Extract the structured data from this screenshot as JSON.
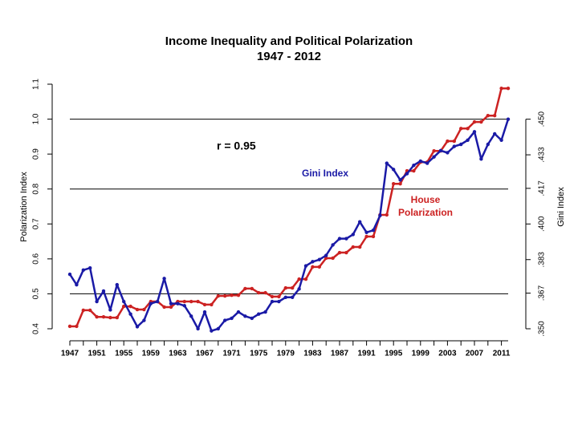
{
  "chart_data": {
    "type": "line",
    "title": [
      "Income Inequality and Political Polarization",
      "1947 - 2012"
    ],
    "y_label": "Polarization Index",
    "y2_label": "Gini Index",
    "x": [
      1947,
      1948,
      1949,
      1950,
      1951,
      1952,
      1953,
      1954,
      1955,
      1956,
      1957,
      1958,
      1959,
      1960,
      1961,
      1962,
      1963,
      1964,
      1965,
      1966,
      1967,
      1968,
      1969,
      1970,
      1971,
      1972,
      1973,
      1974,
      1975,
      1976,
      1977,
      1978,
      1979,
      1980,
      1981,
      1982,
      1983,
      1984,
      1985,
      1986,
      1987,
      1988,
      1989,
      1990,
      1991,
      1992,
      1993,
      1994,
      1995,
      1996,
      1997,
      1998,
      1999,
      2000,
      2001,
      2002,
      2003,
      2004,
      2005,
      2006,
      2007,
      2008,
      2009,
      2010,
      2011,
      2012
    ],
    "series": [
      {
        "name": "House Polarization",
        "color": "#cc2222",
        "axis": "y",
        "values": [
          0.407,
          0.407,
          0.453,
          0.453,
          0.434,
          0.434,
          0.432,
          0.432,
          0.464,
          0.464,
          0.455,
          0.455,
          0.478,
          0.478,
          0.462,
          0.462,
          0.478,
          0.478,
          0.478,
          0.478,
          0.469,
          0.469,
          0.494,
          0.494,
          0.496,
          0.496,
          0.515,
          0.515,
          0.503,
          0.503,
          0.492,
          0.492,
          0.517,
          0.517,
          0.542,
          0.542,
          0.577,
          0.577,
          0.602,
          0.602,
          0.618,
          0.618,
          0.634,
          0.634,
          0.664,
          0.664,
          0.726,
          0.726,
          0.815,
          0.815,
          0.852,
          0.852,
          0.877,
          0.877,
          0.909,
          0.909,
          0.937,
          0.937,
          0.973,
          0.973,
          0.992,
          0.992,
          1.01,
          1.01,
          1.088,
          1.088
        ]
      },
      {
        "name": "Gini Index",
        "color": "#1a1aa6",
        "axis": "y2",
        "values": [
          0.376,
          0.371,
          0.378,
          0.379,
          0.363,
          0.368,
          0.359,
          0.371,
          0.363,
          0.357,
          0.351,
          0.354,
          0.362,
          0.363,
          0.374,
          0.362,
          0.362,
          0.361,
          0.356,
          0.35,
          0.358,
          0.349,
          0.35,
          0.354,
          0.355,
          0.358,
          0.356,
          0.355,
          0.357,
          0.358,
          0.363,
          0.363,
          0.365,
          0.365,
          0.369,
          0.38,
          0.382,
          0.383,
          0.385,
          0.39,
          0.393,
          0.393,
          0.395,
          0.401,
          0.396,
          0.397,
          0.404,
          0.429,
          0.426,
          0.421,
          0.424,
          0.428,
          0.43,
          0.429,
          0.432,
          0.435,
          0.434,
          0.437,
          0.438,
          0.44,
          0.444,
          0.431,
          0.438,
          0.443,
          0.44,
          0.45
        ]
      }
    ],
    "xlim": [
      1947,
      2012
    ],
    "xticks": [
      1947,
      1951,
      1955,
      1959,
      1963,
      1967,
      1971,
      1975,
      1979,
      1983,
      1987,
      1991,
      1995,
      1999,
      2003,
      2007,
      2011
    ],
    "xminorticks": [
      1949,
      1953,
      1957,
      1961,
      1965,
      1969,
      1973,
      1977,
      1981,
      1985,
      1989,
      1993,
      1997,
      2001,
      2005,
      2009
    ],
    "ylim": [
      0.4,
      1.1
    ],
    "yticks": [
      0.4,
      0.5,
      0.6,
      0.7,
      0.8,
      0.9,
      {
        "value": 1,
        "label": "1.0"
      },
      1.1
    ],
    "y2lim": [
      0.35,
      0.4667
    ],
    "y2ticks": [
      {
        "value": 0.35,
        "label": ".350"
      },
      {
        "value": 0.367,
        "label": ".367"
      },
      {
        "value": 0.383,
        "label": ".383"
      },
      {
        "value": 0.4,
        "label": ".400"
      },
      {
        "value": 0.417,
        "label": ".417"
      },
      {
        "value": 0.433,
        "label": ".433"
      },
      {
        "value": 0.45,
        "label": ".450"
      }
    ],
    "reference_lines": [
      0.5,
      0.8,
      1.0
    ],
    "annotations": [
      {
        "text": "r = 0.95"
      },
      {
        "text": "Gini Index",
        "color": "#1a1aa6"
      },
      {
        "text": [
          "House",
          "Polarization"
        ],
        "color": "#cc2222"
      }
    ]
  }
}
